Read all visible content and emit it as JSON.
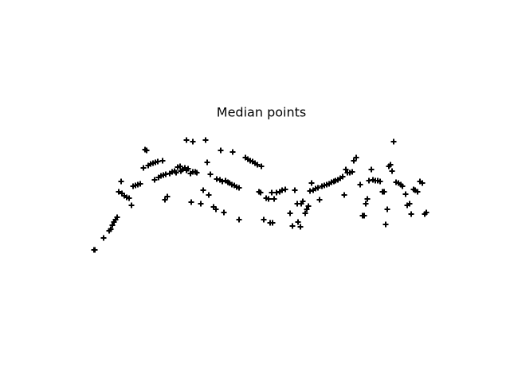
{
  "chart_data": {
    "type": "scatter",
    "title": "Median points",
    "marker": "+",
    "color": "#000000",
    "xlim": [
      0,
      496
    ],
    "ylim": [
      0,
      364
    ],
    "x": [
      38,
      39,
      50,
      57,
      59,
      61,
      63,
      65,
      67,
      69,
      72,
      73,
      76,
      79,
      82,
      85,
      87,
      90,
      93,
      96,
      100,
      102,
      104,
      106,
      109,
      112,
      115,
      118,
      124,
      114,
      119,
      122,
      125,
      128,
      127,
      130,
      133,
      136,
      139,
      141,
      143,
      146,
      147,
      149,
      152,
      154,
      156,
      159,
      162,
      165,
      154,
      162,
      178,
      167,
      160,
      172,
      175,
      180,
      182,
      184,
      188,
      191,
      192,
      196,
      199,
      201,
      203,
      206,
      208,
      211,
      214,
      217,
      220,
      197,
      212,
      220,
      228,
      231,
      234,
      237,
      240,
      243,
      248,
      245,
      247,
      251,
      254,
      257,
      259,
      262,
      261,
      264,
      267,
      271,
      274,
      278,
      284,
      287,
      290,
      293,
      294,
      297,
      298,
      300,
      303,
      305,
      307,
      309,
      311,
      313,
      316,
      319,
      321,
      324,
      327,
      330,
      333,
      336,
      339,
      341,
      344,
      347,
      350,
      352,
      354,
      356,
      359,
      362,
      364,
      367,
      372,
      375,
      377,
      379,
      381,
      383,
      386,
      388,
      391,
      394,
      397,
      400,
      402,
      404,
      406,
      408,
      410,
      412,
      414,
      417,
      420,
      423,
      425,
      429,
      431,
      434,
      436,
      439,
      441,
      444,
      447,
      450,
      453,
      455
    ],
    "values": [
      108,
      108,
      123,
      132,
      134,
      139,
      143,
      146,
      149,
      181,
      194,
      179,
      176,
      174,
      173,
      164,
      188,
      189,
      190,
      191,
      211,
      234,
      233,
      214,
      216,
      217,
      218,
      219,
      220,
      196,
      199,
      201,
      202,
      203,
      171,
      175,
      204,
      206,
      207,
      205,
      212,
      213,
      207,
      209,
      211,
      208,
      210,
      204,
      206,
      206,
      246,
      244,
      246,
      205,
      168,
      166,
      183,
      218,
      177,
      203,
      162,
      159,
      197,
      196,
      194,
      155,
      195,
      193,
      192,
      190,
      189,
      187,
      186,
      233,
      231,
      146,
      224,
      222,
      220,
      219,
      217,
      215,
      213,
      181,
      180,
      146,
      173,
      172,
      142,
      142,
      180,
      172,
      180,
      181,
      183,
      184,
      154,
      138,
      183,
      166,
      143,
      137,
      166,
      169,
      154,
      159,
      163,
      182,
      192,
      183,
      185,
      186,
      171,
      188,
      189,
      190,
      191,
      193,
      194,
      195,
      196,
      198,
      200,
      177,
      209,
      205,
      205,
      206,
      220,
      224,
      190,
      151,
      151,
      166,
      172,
      195,
      209,
      196,
      195,
      195,
      194,
      181,
      181,
      140,
      159,
      213,
      215,
      207,
      244,
      193,
      192,
      190,
      188,
      178,
      164,
      166,
      153,
      184,
      183,
      181,
      194,
      192,
      153,
      155
    ]
  }
}
